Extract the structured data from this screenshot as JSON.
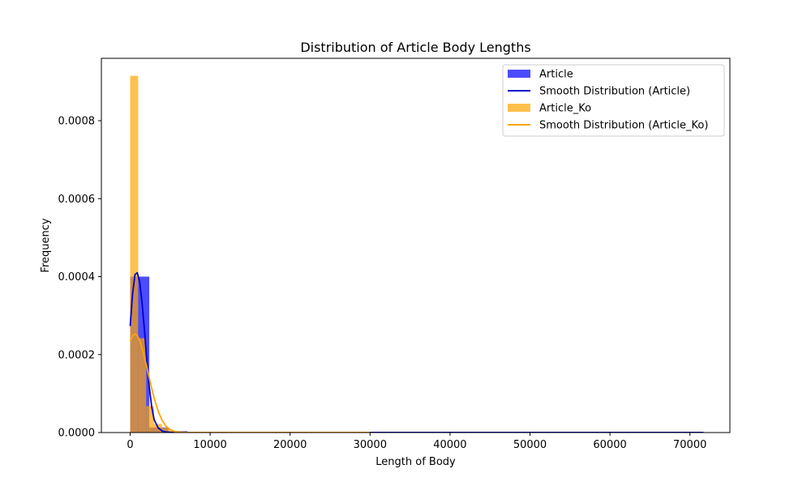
{
  "chart_data": {
    "type": "bar",
    "title": "Distribution of Article Body Lengths",
    "xlabel": "Length of Body",
    "ylabel": "Frequency",
    "xlim": [
      -3600,
      75000
    ],
    "ylim": [
      0,
      0.00096
    ],
    "x_ticks": [
      0,
      10000,
      20000,
      30000,
      40000,
      50000,
      60000,
      70000
    ],
    "x_tick_labels": [
      "0",
      "10000",
      "20000",
      "30000",
      "40000",
      "50000",
      "60000",
      "70000"
    ],
    "y_ticks": [
      0,
      0.0002,
      0.0004,
      0.0006,
      0.0008
    ],
    "y_tick_labels": [
      "0.0000",
      "0.0002",
      "0.0004",
      "0.0006",
      "0.0008"
    ],
    "legend_position": "top-right",
    "series": [
      {
        "name": "Article",
        "kind": "histogram",
        "color": "#0000ff",
        "opacity": 0.7,
        "bin_start": 0,
        "bin_width": 2390,
        "values": [
          0.0004,
          1.3e-05,
          3.5e-06,
          8e-07,
          2e-07,
          1e-07,
          5e-08,
          3e-08,
          2e-08,
          2e-08,
          1e-08,
          1e-08,
          5e-09,
          1e-08,
          5e-09,
          5e-09,
          5e-09,
          5e-09,
          5e-09,
          5e-09,
          5e-09,
          5e-09,
          5e-09,
          5e-09,
          5e-09,
          5e-09,
          5e-09,
          5e-09,
          5e-09,
          1e-08
        ]
      },
      {
        "name": "Smooth Distribution (Article)",
        "kind": "line",
        "color": "#0000cc",
        "x": [
          0,
          300,
          600,
          900,
          1200,
          1500,
          1800,
          2100,
          2400,
          2700,
          3000,
          3500,
          4000,
          4500,
          5000,
          6000,
          8000,
          15000,
          30000,
          45000,
          60000,
          71700
        ],
        "y": [
          0.000273,
          0.000355,
          0.000405,
          0.00041,
          0.000385,
          0.00033,
          0.00026,
          0.00018,
          0.000115,
          6.5e-05,
          3.3e-05,
          1.2e-05,
          4e-06,
          1.5e-06,
          5e-07,
          2e-07,
          1e-07,
          5e-08,
          2e-07,
          2e-07,
          2e-07,
          2e-07
        ]
      },
      {
        "name": "Article_Ko",
        "kind": "histogram",
        "color": "#ffa500",
        "opacity": 0.7,
        "bin_start": 0,
        "bin_width": 1000,
        "values": [
          0.000915,
          0.000242,
          6.8e-05,
          2.2e-05,
          1.2e-05,
          4e-06,
          2e-06,
          1e-06,
          5e-07,
          3e-07,
          2e-07,
          1e-07,
          1e-07,
          5e-08,
          5e-08,
          5e-08,
          5e-08,
          5e-08,
          5e-08,
          5e-08,
          5e-08,
          5e-08,
          5e-08,
          5e-08,
          5e-08,
          5e-08,
          5e-08,
          5e-08,
          5e-08,
          5e-08
        ]
      },
      {
        "name": "Smooth Distribution (Article_Ko)",
        "kind": "line",
        "color": "#ffa500",
        "x": [
          0,
          300,
          600,
          900,
          1200,
          1600,
          2000,
          2500,
          3000,
          3500,
          4000,
          4500,
          5000,
          5500,
          6000,
          7000,
          10000,
          15000,
          20000,
          25000,
          30000
        ],
        "y": [
          0.000235,
          0.000248,
          0.000253,
          0.000248,
          0.000235,
          0.000208,
          0.000175,
          0.00013,
          8.8e-05,
          5.5e-05,
          3.1e-05,
          1.6e-05,
          7.5e-06,
          3.3e-06,
          1.3e-06,
          4e-07,
          1e-07,
          1e-07,
          1e-07,
          1e-07,
          1e-07
        ]
      }
    ]
  }
}
